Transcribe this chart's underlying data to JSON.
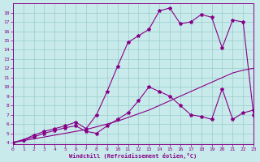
{
  "bg_color": "#c8eaea",
  "line_color": "#880088",
  "grid_color": "#99cccc",
  "xlim": [
    0,
    23
  ],
  "ylim": [
    3.8,
    19.0
  ],
  "xticks": [
    0,
    1,
    2,
    3,
    4,
    5,
    6,
    7,
    8,
    9,
    10,
    11,
    12,
    13,
    14,
    15,
    16,
    17,
    18,
    19,
    20,
    21,
    22,
    23
  ],
  "yticks": [
    4,
    5,
    6,
    7,
    8,
    9,
    10,
    11,
    12,
    13,
    14,
    15,
    16,
    17,
    18
  ],
  "xlabel": "Windchill (Refroidissement éolien,°C)",
  "line1": {
    "x": [
      0,
      1,
      2,
      3,
      4,
      5,
      6,
      7,
      8,
      9,
      10,
      11,
      12,
      13,
      14,
      15,
      16,
      17,
      18,
      19,
      20,
      21,
      22,
      23
    ],
    "y": [
      4.0,
      4.2,
      4.4,
      4.6,
      4.8,
      5.0,
      5.2,
      5.4,
      5.7,
      6.0,
      6.3,
      6.7,
      7.1,
      7.5,
      8.0,
      8.5,
      9.0,
      9.5,
      10.0,
      10.5,
      11.0,
      11.5,
      11.8,
      12.0
    ],
    "marker": false
  },
  "line2": {
    "x": [
      0,
      1,
      2,
      3,
      4,
      5,
      6,
      7,
      8,
      9,
      10,
      11,
      12,
      13,
      14,
      15,
      16,
      17,
      18,
      19,
      20,
      21,
      22,
      23
    ],
    "y": [
      4.0,
      4.3,
      4.6,
      5.0,
      5.3,
      5.6,
      5.8,
      5.2,
      5.0,
      5.8,
      6.5,
      7.2,
      8.5,
      10.0,
      9.5,
      9.0,
      8.0,
      7.0,
      6.8,
      6.5,
      9.8,
      6.5,
      7.2,
      7.5
    ],
    "marker": true
  },
  "line3": {
    "x": [
      0,
      1,
      2,
      3,
      4,
      5,
      6,
      7,
      8,
      9,
      10,
      11,
      12,
      13,
      14,
      15,
      16,
      17,
      18,
      19,
      20,
      21,
      22,
      23
    ],
    "y": [
      4.0,
      4.3,
      4.8,
      5.2,
      5.5,
      5.8,
      6.2,
      5.5,
      7.0,
      9.5,
      12.2,
      14.8,
      15.5,
      16.2,
      18.2,
      18.5,
      16.8,
      17.0,
      17.8,
      17.5,
      14.2,
      17.2,
      17.0,
      7.0
    ],
    "marker": true
  }
}
